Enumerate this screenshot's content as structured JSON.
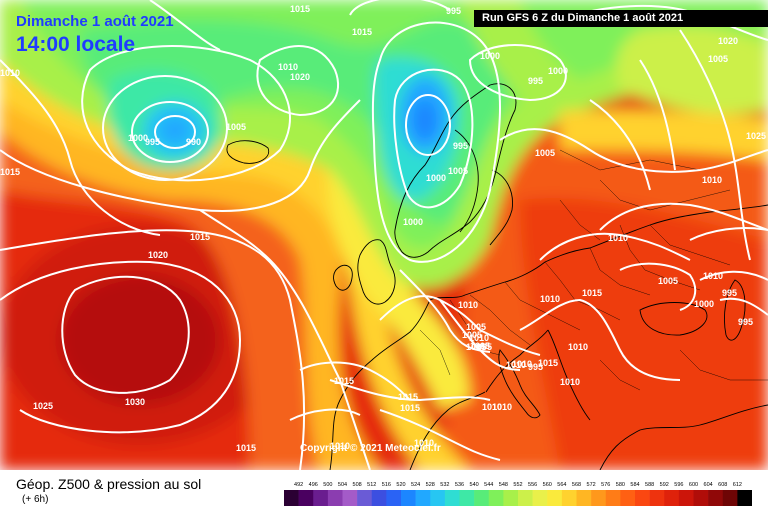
{
  "header": {
    "date_line": "Dimanche 1 août 2021",
    "time_line": "14:00 locale",
    "run_banner": "Run GFS 6 Z du Dimanche 1 août 2021"
  },
  "footer": {
    "copyright": "Copyright © 2021 Meteociel.fr",
    "legend_title": "Géop. Z500 & pression au sol",
    "legend_sub": "(+ 6h)"
  },
  "colors": {
    "scale": [
      "#2b0033",
      "#4a0060",
      "#6a1d8f",
      "#8b3db0",
      "#a45bc8",
      "#6a5bd6",
      "#3c4fe0",
      "#2a63f5",
      "#1c86ff",
      "#21a8ff",
      "#27c6f2",
      "#2fddd3",
      "#3ee8a6",
      "#58ec79",
      "#7ff05a",
      "#a8f04a",
      "#ccf04a",
      "#e9f04a",
      "#faea3c",
      "#ffd22e",
      "#ffb623",
      "#ff981c",
      "#ff7c17",
      "#ff6013",
      "#fa4711",
      "#ee330e",
      "#df220b",
      "#cc150a",
      "#b00d09",
      "#900808",
      "#6e0505",
      "#000000"
    ]
  },
  "scale_labels": [
    "492",
    "496",
    "500",
    "504",
    "508",
    "512",
    "516",
    "520",
    "524",
    "528",
    "532",
    "536",
    "540",
    "544",
    "548",
    "552",
    "556",
    "560",
    "564",
    "568",
    "572",
    "576",
    "580",
    "584",
    "588",
    "592",
    "596",
    "600",
    "604",
    "608",
    "612"
  ],
  "isobars": [
    {
      "label": "1015"
    },
    {
      "label": "1010"
    },
    {
      "label": "1015"
    },
    {
      "label": "1020"
    },
    {
      "label": "1000"
    },
    {
      "label": "995"
    },
    {
      "label": "990"
    },
    {
      "label": "1005"
    },
    {
      "label": "1010"
    },
    {
      "label": "1020"
    },
    {
      "label": "1015"
    },
    {
      "label": "995"
    },
    {
      "label": "1000"
    },
    {
      "label": "995"
    },
    {
      "label": "995"
    },
    {
      "label": "1000"
    },
    {
      "label": "1005"
    },
    {
      "label": "1000"
    },
    {
      "label": "1005"
    },
    {
      "label": "1000"
    },
    {
      "label": "1010"
    },
    {
      "label": "1005"
    },
    {
      "label": "1010"
    },
    {
      "label": "1010"
    },
    {
      "label": "1015"
    },
    {
      "label": "1010"
    },
    {
      "label": "1005"
    },
    {
      "label": "1000"
    },
    {
      "label": "1010"
    },
    {
      "label": "1010"
    },
    {
      "label": "1020"
    },
    {
      "label": "1025"
    },
    {
      "label": "1015"
    },
    {
      "label": "1030"
    },
    {
      "label": "1025"
    },
    {
      "label": "1015"
    },
    {
      "label": "1015"
    },
    {
      "label": "1015"
    },
    {
      "label": "1010"
    },
    {
      "label": "1010"
    },
    {
      "label": "1010"
    },
    {
      "label": "1010"
    },
    {
      "label": "1005"
    },
    {
      "label": "1005"
    },
    {
      "label": "1005"
    },
    {
      "label": "1005"
    },
    {
      "label": "1010"
    },
    {
      "label": "1015"
    },
    {
      "label": "1010"
    },
    {
      "label": "995"
    },
    {
      "label": "1010"
    },
    {
      "label": "1005"
    },
    {
      "label": "995"
    },
    {
      "label": "1015"
    },
    {
      "label": "1010"
    },
    {
      "label": "995"
    }
  ]
}
